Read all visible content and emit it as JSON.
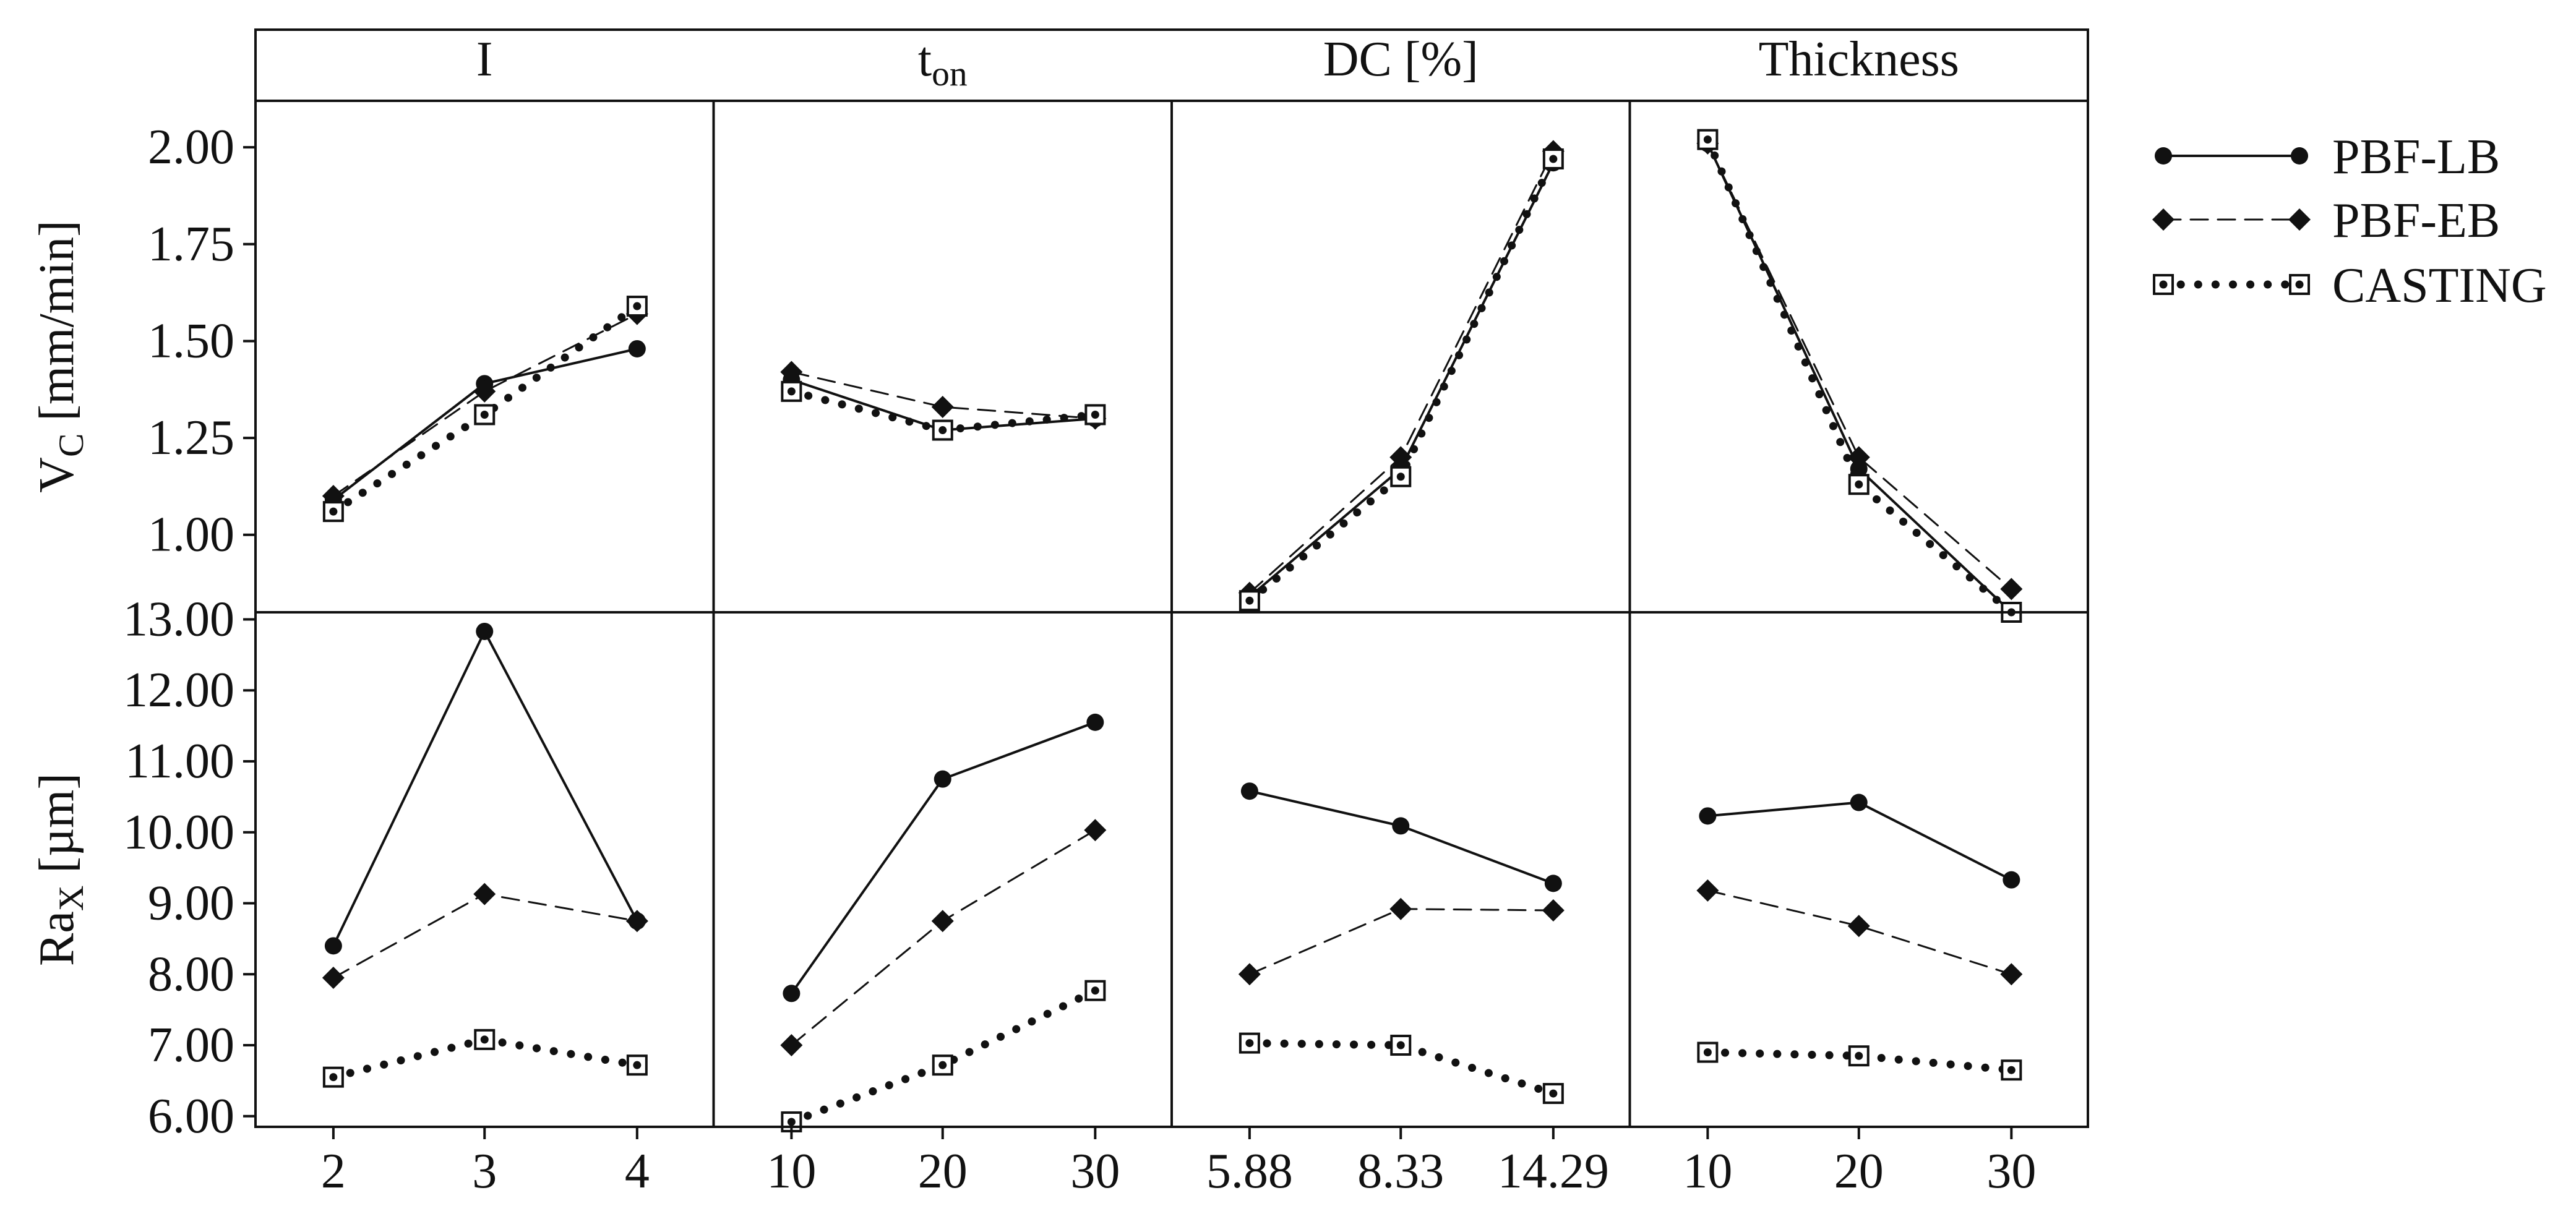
{
  "chart_data": {
    "type": "line",
    "panel_titles": [
      {
        "main": "I",
        "sub": ""
      },
      {
        "main": "t",
        "sub": "on"
      },
      {
        "main": "DC [%]",
        "sub": ""
      },
      {
        "main": "Thickness",
        "sub": ""
      }
    ],
    "x_ticks": [
      [
        "2",
        "3",
        "4"
      ],
      [
        "10",
        "20",
        "30"
      ],
      [
        "5.88",
        "8.33",
        "14.29"
      ],
      [
        "10",
        "20",
        "30"
      ]
    ],
    "rows": [
      {
        "ylabel_main": "V",
        "ylabel_sub": "C",
        "ylabel_rest": " [mm/min]",
        "ylim": [
          0.8,
          2.12
        ],
        "yticks": [
          1.0,
          1.25,
          1.5,
          1.75,
          2.0
        ],
        "ytick_labels": [
          "1.00",
          "1.25",
          "1.50",
          "1.75",
          "2.00"
        ],
        "series": [
          {
            "name": "PBF-LB",
            "panels": [
              [
                1.09,
                1.39,
                1.48
              ],
              [
                1.4,
                1.27,
                1.3
              ],
              [
                0.84,
                1.17,
                1.96
              ],
              [
                2.01,
                1.17,
                0.8
              ]
            ]
          },
          {
            "name": "PBF-EB",
            "panels": [
              [
                1.1,
                1.37,
                1.57
              ],
              [
                1.42,
                1.33,
                1.3
              ],
              [
                0.85,
                1.2,
                1.99
              ],
              [
                2.01,
                1.2,
                0.86
              ]
            ]
          },
          {
            "name": "CASTING",
            "panels": [
              [
                1.06,
                1.31,
                1.59
              ],
              [
                1.37,
                1.27,
                1.31
              ],
              [
                0.83,
                1.15,
                1.97
              ],
              [
                2.02,
                1.13,
                0.8
              ]
            ]
          }
        ]
      },
      {
        "ylabel_main": "Ra",
        "ylabel_sub": "X",
        "ylabel_rest": " [µm]",
        "ylim": [
          5.85,
          13.1
        ],
        "yticks": [
          6,
          7,
          8,
          9,
          10,
          11,
          12,
          13
        ],
        "ytick_labels": [
          "6.00",
          "7.00",
          "8.00",
          "9.00",
          "10.00",
          "11.00",
          "12.00",
          "13.00"
        ],
        "series": [
          {
            "name": "PBF-LB",
            "panels": [
              [
                8.4,
                12.83,
                8.75
              ],
              [
                7.73,
                10.75,
                11.55
              ],
              [
                10.58,
                10.09,
                9.28
              ],
              [
                10.23,
                10.42,
                9.33
              ]
            ]
          },
          {
            "name": "PBF-EB",
            "panels": [
              [
                7.95,
                9.13,
                8.75
              ],
              [
                7.0,
                8.75,
                10.03
              ],
              [
                8.0,
                8.92,
                8.9
              ],
              [
                9.18,
                8.68,
                8.0
              ]
            ]
          },
          {
            "name": "CASTING",
            "panels": [
              [
                6.55,
                7.08,
                6.72
              ],
              [
                5.92,
                6.72,
                7.77
              ],
              [
                7.03,
                7.0,
                6.32
              ],
              [
                6.9,
                6.85,
                6.65
              ]
            ]
          }
        ]
      }
    ],
    "legend": {
      "position": "right",
      "entries": [
        {
          "label": "PBF-LB",
          "line": "solid",
          "marker": "circle"
        },
        {
          "label": "PBF-EB",
          "line": "dashed",
          "marker": "diamond"
        },
        {
          "label": "CASTING",
          "line": "dotted",
          "marker": "dotted-square"
        }
      ]
    },
    "grid": false
  }
}
